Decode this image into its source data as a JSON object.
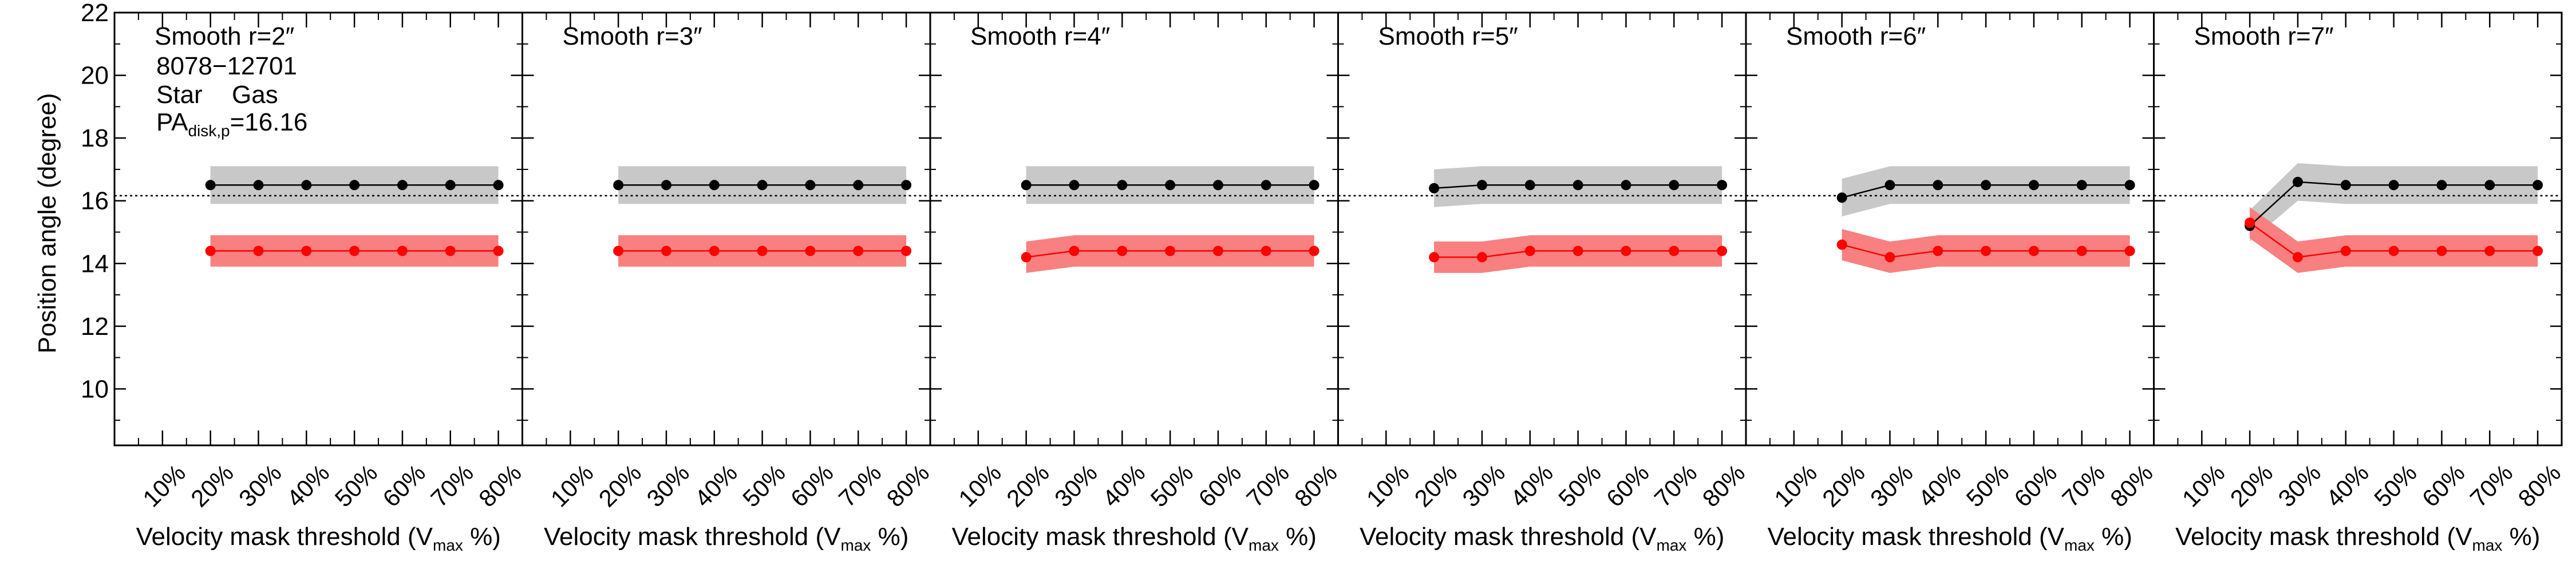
{
  "figure": {
    "ylabel": "Position angle (degree)",
    "xlabel_prefix": "Velocity mask threshold (V",
    "xlabel_sub": "max",
    "xlabel_suffix": " %)",
    "info": {
      "id": "8078−12701",
      "legend_star": "Star",
      "legend_gas": "Gas",
      "pa_label_main": "PA",
      "pa_label_sub": "disk,p",
      "pa_label_value": "=16.16"
    }
  },
  "colors": {
    "star": "#000000",
    "gas": "#ff0000",
    "star_band": "#c8c8c8",
    "gas_band": "#f88080"
  },
  "chart_data": [
    {
      "type": "line",
      "title": "Smooth r=2″",
      "categories": [
        "10%",
        "20%",
        "30%",
        "40%",
        "50%",
        "60%",
        "70%",
        "80%"
      ],
      "x": [
        20,
        30,
        40,
        50,
        60,
        70,
        80
      ],
      "xlim": [
        0,
        85
      ],
      "ylim": [
        8.2,
        22
      ],
      "yticks": [
        10,
        12,
        14,
        16,
        18,
        20,
        22
      ],
      "reference_line": 16.16,
      "series": [
        {
          "name": "Star",
          "values": [
            16.5,
            16.5,
            16.5,
            16.5,
            16.5,
            16.5,
            16.5
          ],
          "band": [
            0.6,
            0.6,
            0.6,
            0.6,
            0.6,
            0.6,
            0.6
          ]
        },
        {
          "name": "Gas",
          "values": [
            14.4,
            14.4,
            14.4,
            14.4,
            14.4,
            14.4,
            14.4
          ],
          "band": [
            0.5,
            0.5,
            0.5,
            0.5,
            0.5,
            0.5,
            0.5
          ]
        }
      ]
    },
    {
      "type": "line",
      "title": "Smooth r=3″",
      "categories": [
        "10%",
        "20%",
        "30%",
        "40%",
        "50%",
        "60%",
        "70%",
        "80%"
      ],
      "x": [
        20,
        30,
        40,
        50,
        60,
        70,
        80
      ],
      "xlim": [
        0,
        85
      ],
      "ylim": [
        8.2,
        22
      ],
      "reference_line": 16.16,
      "series": [
        {
          "name": "Star",
          "values": [
            16.5,
            16.5,
            16.5,
            16.5,
            16.5,
            16.5,
            16.5
          ],
          "band": [
            0.6,
            0.6,
            0.6,
            0.6,
            0.6,
            0.6,
            0.6
          ]
        },
        {
          "name": "Gas",
          "values": [
            14.4,
            14.4,
            14.4,
            14.4,
            14.4,
            14.4,
            14.4
          ],
          "band": [
            0.5,
            0.5,
            0.5,
            0.5,
            0.5,
            0.5,
            0.5
          ]
        }
      ]
    },
    {
      "type": "line",
      "title": "Smooth r=4″",
      "categories": [
        "10%",
        "20%",
        "30%",
        "40%",
        "50%",
        "60%",
        "70%",
        "80%"
      ],
      "x": [
        20,
        30,
        40,
        50,
        60,
        70,
        80
      ],
      "xlim": [
        0,
        85
      ],
      "ylim": [
        8.2,
        22
      ],
      "reference_line": 16.16,
      "series": [
        {
          "name": "Star",
          "values": [
            16.5,
            16.5,
            16.5,
            16.5,
            16.5,
            16.5,
            16.5
          ],
          "band": [
            0.6,
            0.6,
            0.6,
            0.6,
            0.6,
            0.6,
            0.6
          ]
        },
        {
          "name": "Gas",
          "values": [
            14.2,
            14.4,
            14.4,
            14.4,
            14.4,
            14.4,
            14.4
          ],
          "band": [
            0.5,
            0.5,
            0.5,
            0.5,
            0.5,
            0.5,
            0.5
          ]
        }
      ]
    },
    {
      "type": "line",
      "title": "Smooth r=5″",
      "categories": [
        "10%",
        "20%",
        "30%",
        "40%",
        "50%",
        "60%",
        "70%",
        "80%"
      ],
      "x": [
        20,
        30,
        40,
        50,
        60,
        70,
        80
      ],
      "xlim": [
        0,
        85
      ],
      "ylim": [
        8.2,
        22
      ],
      "reference_line": 16.16,
      "series": [
        {
          "name": "Star",
          "values": [
            16.4,
            16.5,
            16.5,
            16.5,
            16.5,
            16.5,
            16.5
          ],
          "band": [
            0.6,
            0.6,
            0.6,
            0.6,
            0.6,
            0.6,
            0.6
          ]
        },
        {
          "name": "Gas",
          "values": [
            14.2,
            14.2,
            14.4,
            14.4,
            14.4,
            14.4,
            14.4
          ],
          "band": [
            0.5,
            0.5,
            0.5,
            0.5,
            0.5,
            0.5,
            0.5
          ]
        }
      ]
    },
    {
      "type": "line",
      "title": "Smooth r=6″",
      "categories": [
        "10%",
        "20%",
        "30%",
        "40%",
        "50%",
        "60%",
        "70%",
        "80%"
      ],
      "x": [
        20,
        30,
        40,
        50,
        60,
        70,
        80
      ],
      "xlim": [
        0,
        85
      ],
      "ylim": [
        8.2,
        22
      ],
      "reference_line": 16.16,
      "series": [
        {
          "name": "Star",
          "values": [
            16.1,
            16.5,
            16.5,
            16.5,
            16.5,
            16.5,
            16.5
          ],
          "band": [
            0.6,
            0.6,
            0.6,
            0.6,
            0.6,
            0.6,
            0.6
          ]
        },
        {
          "name": "Gas",
          "values": [
            14.6,
            14.2,
            14.4,
            14.4,
            14.4,
            14.4,
            14.4
          ],
          "band": [
            0.5,
            0.5,
            0.5,
            0.5,
            0.5,
            0.5,
            0.5
          ]
        }
      ]
    },
    {
      "type": "line",
      "title": "Smooth r=7″",
      "categories": [
        "10%",
        "20%",
        "30%",
        "40%",
        "50%",
        "60%",
        "70%",
        "80%"
      ],
      "x": [
        20,
        30,
        40,
        50,
        60,
        70,
        80
      ],
      "xlim": [
        0,
        85
      ],
      "ylim": [
        8.2,
        22
      ],
      "reference_line": 16.16,
      "series": [
        {
          "name": "Star",
          "values": [
            15.2,
            16.6,
            16.5,
            16.5,
            16.5,
            16.5,
            16.5
          ],
          "band": [
            0.5,
            0.6,
            0.6,
            0.6,
            0.6,
            0.6,
            0.6
          ]
        },
        {
          "name": "Gas",
          "values": [
            15.3,
            14.2,
            14.4,
            14.4,
            14.4,
            14.4,
            14.4
          ],
          "band": [
            0.5,
            0.5,
            0.5,
            0.5,
            0.5,
            0.5,
            0.5
          ]
        }
      ]
    }
  ]
}
